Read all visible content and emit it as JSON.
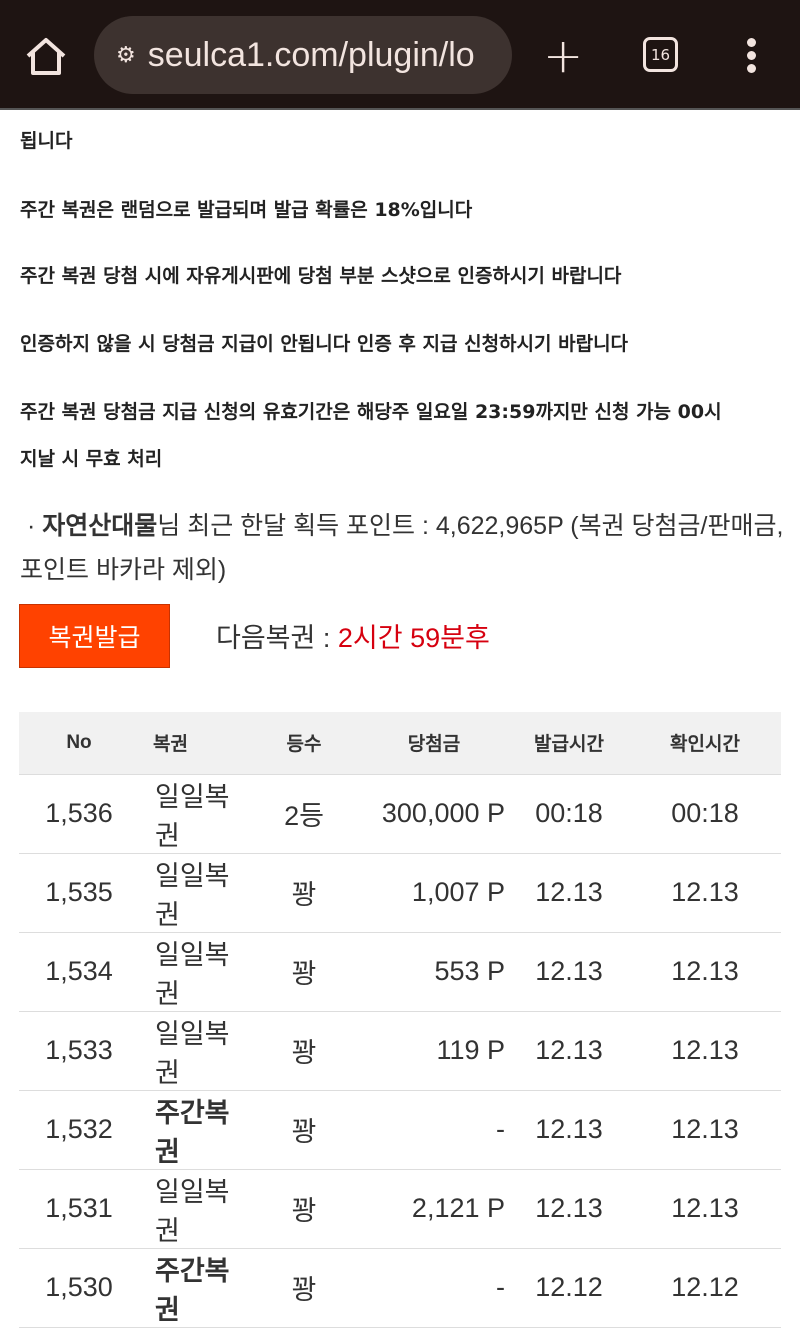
{
  "browser": {
    "url": "seulca1.com/plugin/lo",
    "tab_count": "16"
  },
  "notes": [
    "됩니다",
    "주간 복권은 랜덤으로 발급되며 발급 확률은 18%입니다",
    "주간 복권 당첨 시에 자유게시판에 당첨 부분 스샷으로 인증하시기 바랍니다",
    "인증하지 않을 시 당첨금 지급이 안됩니다 인증 후 지급 신청하시기 바랍니다",
    "주간 복권 당첨금 지급 신청의 유효기간은 해당주 일요일 23:59까지만 신청 가능 00시",
    "지날 시 무효 처리"
  ],
  "info": {
    "bullet": "·",
    "user": "자연산대물",
    "text": "님 최근 한달 획득 포인트 : 4,622,965P (복권 당첨금/판매금, 포인트 바카라 제외)"
  },
  "issue_button": "복권발급",
  "next": {
    "label": "다음복권 : ",
    "value": "2시간 59분후"
  },
  "table": {
    "headers": [
      "No",
      "복권",
      "등수",
      "당첨금",
      "발급시간",
      "확인시간"
    ],
    "rows": [
      [
        "1,536",
        "일일복권",
        "2등",
        "300,000 P",
        "00:18",
        "00:18"
      ],
      [
        "1,535",
        "일일복권",
        "꽝",
        "1,007 P",
        "12.13",
        "12.13"
      ],
      [
        "1,534",
        "일일복권",
        "꽝",
        "553 P",
        "12.13",
        "12.13"
      ],
      [
        "1,533",
        "일일복권",
        "꽝",
        "119 P",
        "12.13",
        "12.13"
      ],
      [
        "1,532",
        "주간복권",
        "꽝",
        "-",
        "12.13",
        "12.13"
      ],
      [
        "1,531",
        "일일복권",
        "꽝",
        "2,121 P",
        "12.13",
        "12.13"
      ],
      [
        "1,530",
        "주간복권",
        "꽝",
        "-",
        "12.12",
        "12.12"
      ]
    ]
  },
  "colors": {
    "button": "#ff4200",
    "highlight": "#d6000f"
  }
}
